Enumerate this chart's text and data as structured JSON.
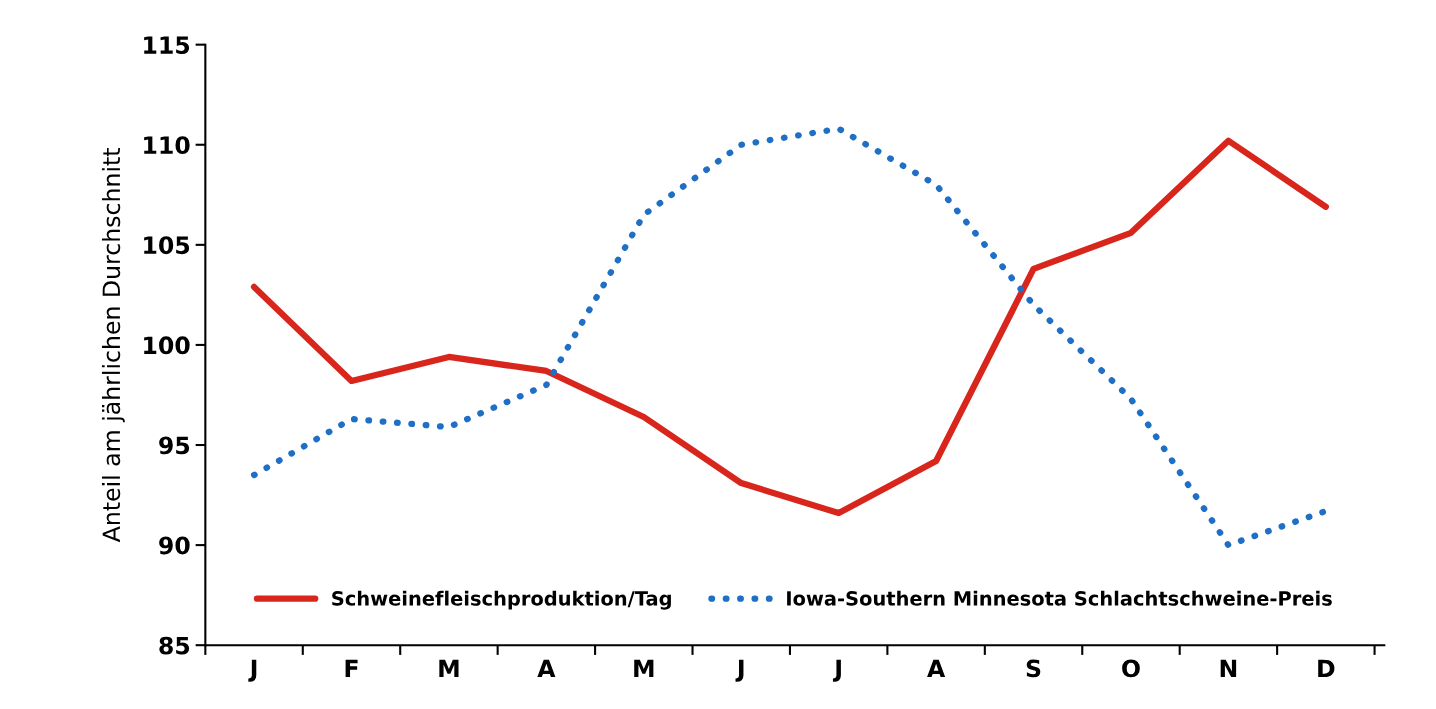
{
  "chart_data": {
    "type": "line",
    "ylabel": "Anteil am jährlichen Durchschnitt",
    "categories": [
      "J",
      "F",
      "M",
      "A",
      "M",
      "J",
      "J",
      "A",
      "S",
      "O",
      "N",
      "D"
    ],
    "series": [
      {
        "name": "Schweinefleischproduktion/Tag",
        "color": "#d9261c",
        "line_style": "solid",
        "values": [
          102.9,
          98.2,
          99.4,
          98.7,
          96.4,
          93.1,
          91.6,
          94.2,
          103.8,
          105.6,
          110.2,
          106.9
        ]
      },
      {
        "name": "Iowa-Southern Minnesota Schlachtschweine-Preis",
        "color": "#1f6fc5",
        "line_style": "dotted",
        "values": [
          93.5,
          96.3,
          95.9,
          98.0,
          106.5,
          110.0,
          110.8,
          108.0,
          102.0,
          97.3,
          90.0,
          91.7
        ]
      }
    ],
    "ylim": [
      85,
      115
    ],
    "yticks": [
      85,
      90,
      95,
      100,
      105,
      110,
      115
    ],
    "grid": false,
    "legend": "bottom",
    "marker": "none"
  }
}
